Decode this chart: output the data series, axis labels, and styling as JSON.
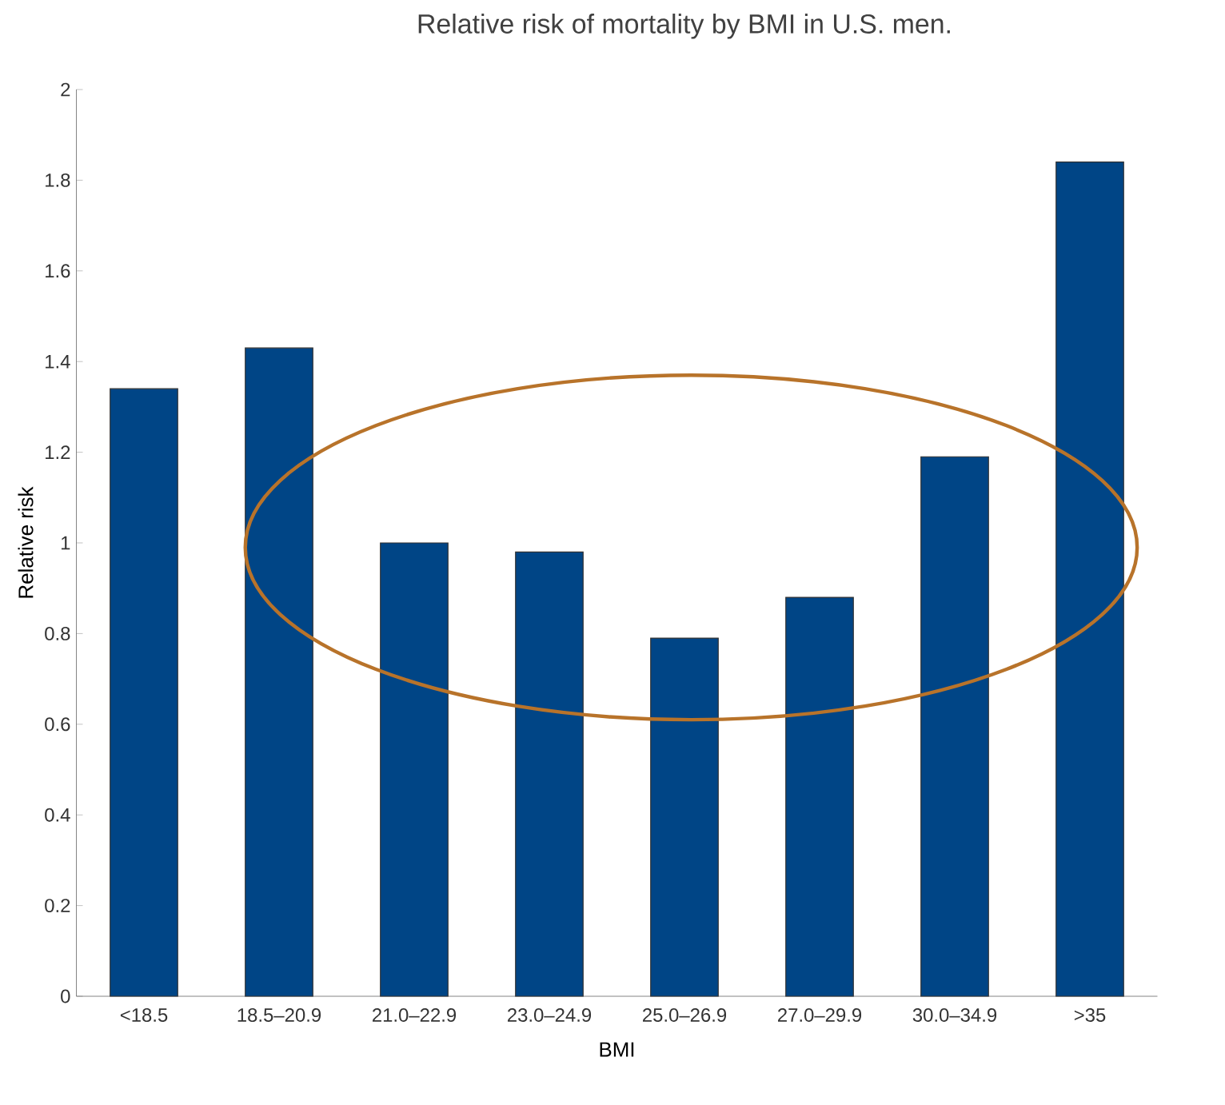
{
  "chart_data": {
    "type": "bar",
    "title": "Relative risk of mortality by BMI in U.S. men.",
    "xlabel": "BMI",
    "ylabel": "Relative risk",
    "categories": [
      "<18.5",
      "18.5–20.9",
      "21.0–22.9",
      "23.0–24.9",
      "25.0–26.9",
      "27.0–29.9",
      "30.0–34.9",
      ">35"
    ],
    "values": [
      1.34,
      1.43,
      1.0,
      0.98,
      0.79,
      0.88,
      1.19,
      1.84
    ],
    "color": "#004586",
    "ylim": [
      0,
      2
    ],
    "yticks": [
      0,
      0.2,
      0.4,
      0.6,
      0.8,
      1,
      1.2,
      1.4,
      1.6,
      1.8,
      2
    ],
    "grid": false
  }
}
